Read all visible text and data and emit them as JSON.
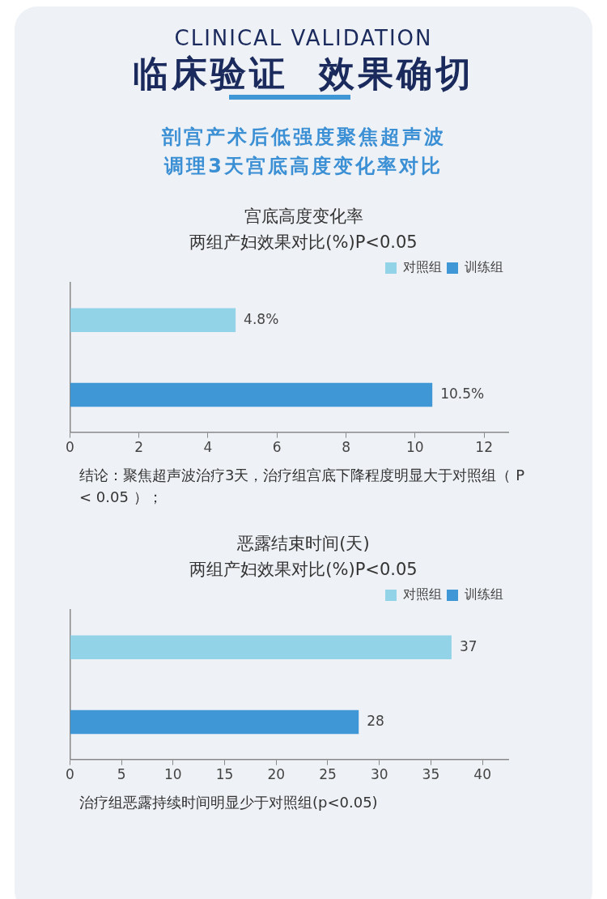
{
  "chart_data": [
    {
      "type": "other",
      "subtitle": "CLINICAL VALIDATION",
      "title": "临床验证  效果确切",
      "annotations": [
        "剖宫产术后低强度聚焦超声波",
        "调理3天宫底高度变化率对比"
      ]
    },
    {
      "type": "bar",
      "orientation": "horizontal",
      "title": "宫底高度变化率",
      "subtitle": "两组产妇效果对比(%)P<0.05",
      "categories": [
        null,
        null
      ],
      "series": [
        {
          "name": "对照组",
          "color": "#93d3e8",
          "values": [
            4.8,
            null
          ],
          "value_labels": [
            "4.8%",
            null
          ]
        },
        {
          "name": "训练组",
          "color": "#3f97d6",
          "values": [
            null,
            10.5
          ],
          "value_labels": [
            null,
            "10.5%"
          ]
        }
      ],
      "xlim": [
        0,
        12.7
      ],
      "xticks": [
        0,
        2,
        4,
        6,
        8,
        10,
        12
      ],
      "grid": false,
      "legend": "top right",
      "annotations": [
        "结论：聚焦超声波治疗3天，治疗组宫底下降程度明显大于对照组（ P < 0.05 ）；"
      ]
    },
    {
      "type": "bar",
      "orientation": "horizontal",
      "title": "恶露结束时间(天)",
      "subtitle": "两组产妇效果对比(%)P<0.05",
      "categories": [
        null,
        null
      ],
      "series": [
        {
          "name": "对照组",
          "color": "#93d3e8",
          "values": [
            37,
            null
          ]
        },
        {
          "name": "训练组",
          "color": "#3f97d6",
          "values": [
            null,
            28
          ]
        }
      ],
      "xlim": [
        0,
        42.5
      ],
      "xticks": [
        0,
        5,
        10,
        15,
        20,
        25,
        30,
        35,
        40
      ],
      "grid": false,
      "legend": "top right",
      "data_labels": true,
      "annotations": [
        "治疗组恶露持续时间明显少于对照组(p<0.05)"
      ]
    }
  ]
}
